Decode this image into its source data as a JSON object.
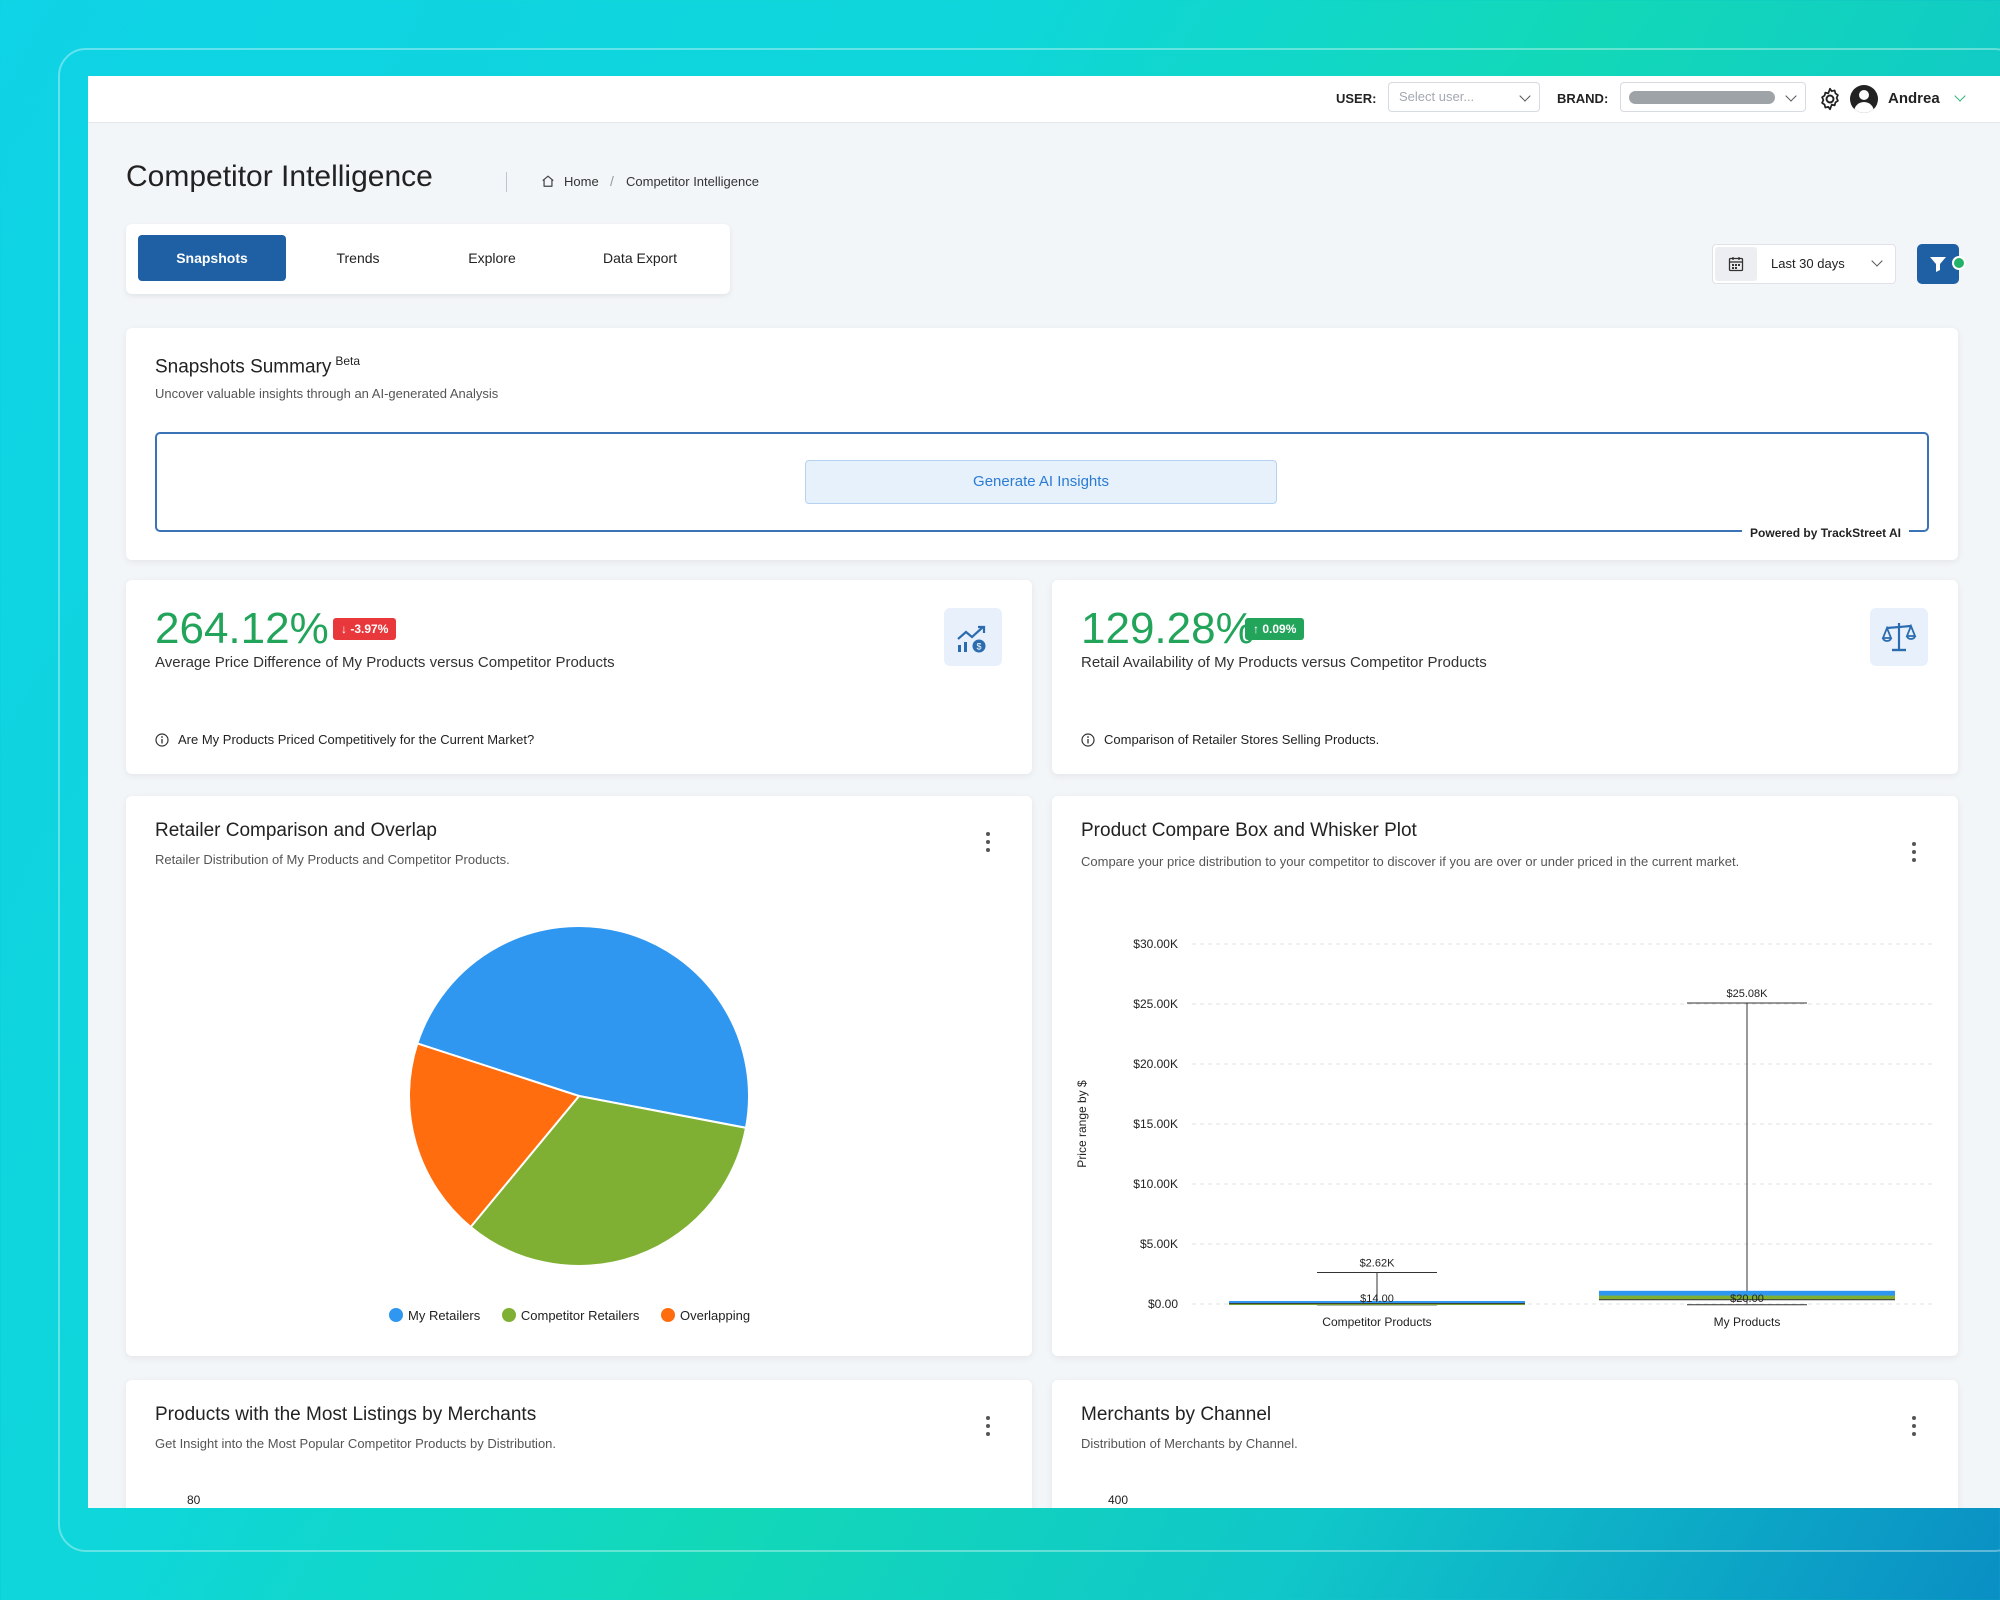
{
  "topbar": {
    "user_label": "USER:",
    "user_placeholder": "Select user...",
    "brand_label": "BRAND:",
    "user_name": "Andrea"
  },
  "header": {
    "title": "Competitor Intelligence",
    "breadcrumb": [
      "Home",
      "Competitor Intelligence"
    ]
  },
  "tabs": [
    "Snapshots",
    "Trends",
    "Explore",
    "Data Export"
  ],
  "date_filter": "Last 30 days",
  "summary": {
    "title": "Snapshots Summary",
    "beta": "Beta",
    "subtitle": "Uncover valuable insights through an AI-generated Analysis",
    "button": "Generate AI Insights",
    "powered": "Powered by TrackStreet AI"
  },
  "kpis": [
    {
      "value": "264.12%",
      "change": "-3.97%",
      "label": "Average Price Difference of My Products versus Competitor Products",
      "note": "Are My Products Priced Competitively for the Current Market?",
      "change_color": "#e8383b"
    },
    {
      "value": "129.28%",
      "change": "0.09%",
      "label": "Retail Availability of My Products versus Competitor Products",
      "note": "Comparison of Retailer Stores Selling Products.",
      "change_color": "#22a45a"
    }
  ],
  "pie_card": {
    "title": "Retailer Comparison and Overlap",
    "subtitle": "Retailer Distribution of My Products and Competitor Products."
  },
  "box_card": {
    "title": "Product Compare Box and Whisker Plot",
    "subtitle": "Compare your price distribution to your competitor to discover if you are over or under priced in the current market."
  },
  "bottom_left": {
    "title": "Products with the Most Listings by Merchants",
    "subtitle": "Get Insight into the Most Popular Competitor Products by Distribution.",
    "first_tick": "80"
  },
  "bottom_right": {
    "title": "Merchants by Channel",
    "subtitle": "Distribution of Merchants by Channel.",
    "first_tick": "400"
  },
  "colors": {
    "primary": "#1f5fa3",
    "my": "#2f97f0",
    "competitor": "#7fb034",
    "overlap": "#ff6d0f"
  },
  "chart_data": [
    {
      "type": "pie",
      "categories": [
        "My Retailers",
        "Competitor Retailers",
        "Overlapping"
      ],
      "values": [
        48,
        33,
        19
      ]
    },
    {
      "type": "box",
      "ylabel": "Price range by $",
      "ylim": [
        0,
        30000
      ],
      "y_ticks": [
        "$0.00",
        "$5.00K",
        "$10.00K",
        "$15.00K",
        "$20.00K",
        "$25.00K",
        "$30.00K"
      ],
      "categories": [
        "Competitor Products",
        "My Products"
      ],
      "series": [
        {
          "name": "Competitor Products",
          "min": 14,
          "q1": 30,
          "median": 80,
          "q3": 250,
          "max": 2620,
          "max_label": "$2.62K",
          "min_label": "$14.00"
        },
        {
          "name": "My Products",
          "min": 20,
          "q1": 350,
          "median": 700,
          "q3": 1100,
          "max": 25080,
          "max_label": "$25.08K",
          "min_label": "$20.00"
        }
      ],
      "grid": true
    }
  ]
}
